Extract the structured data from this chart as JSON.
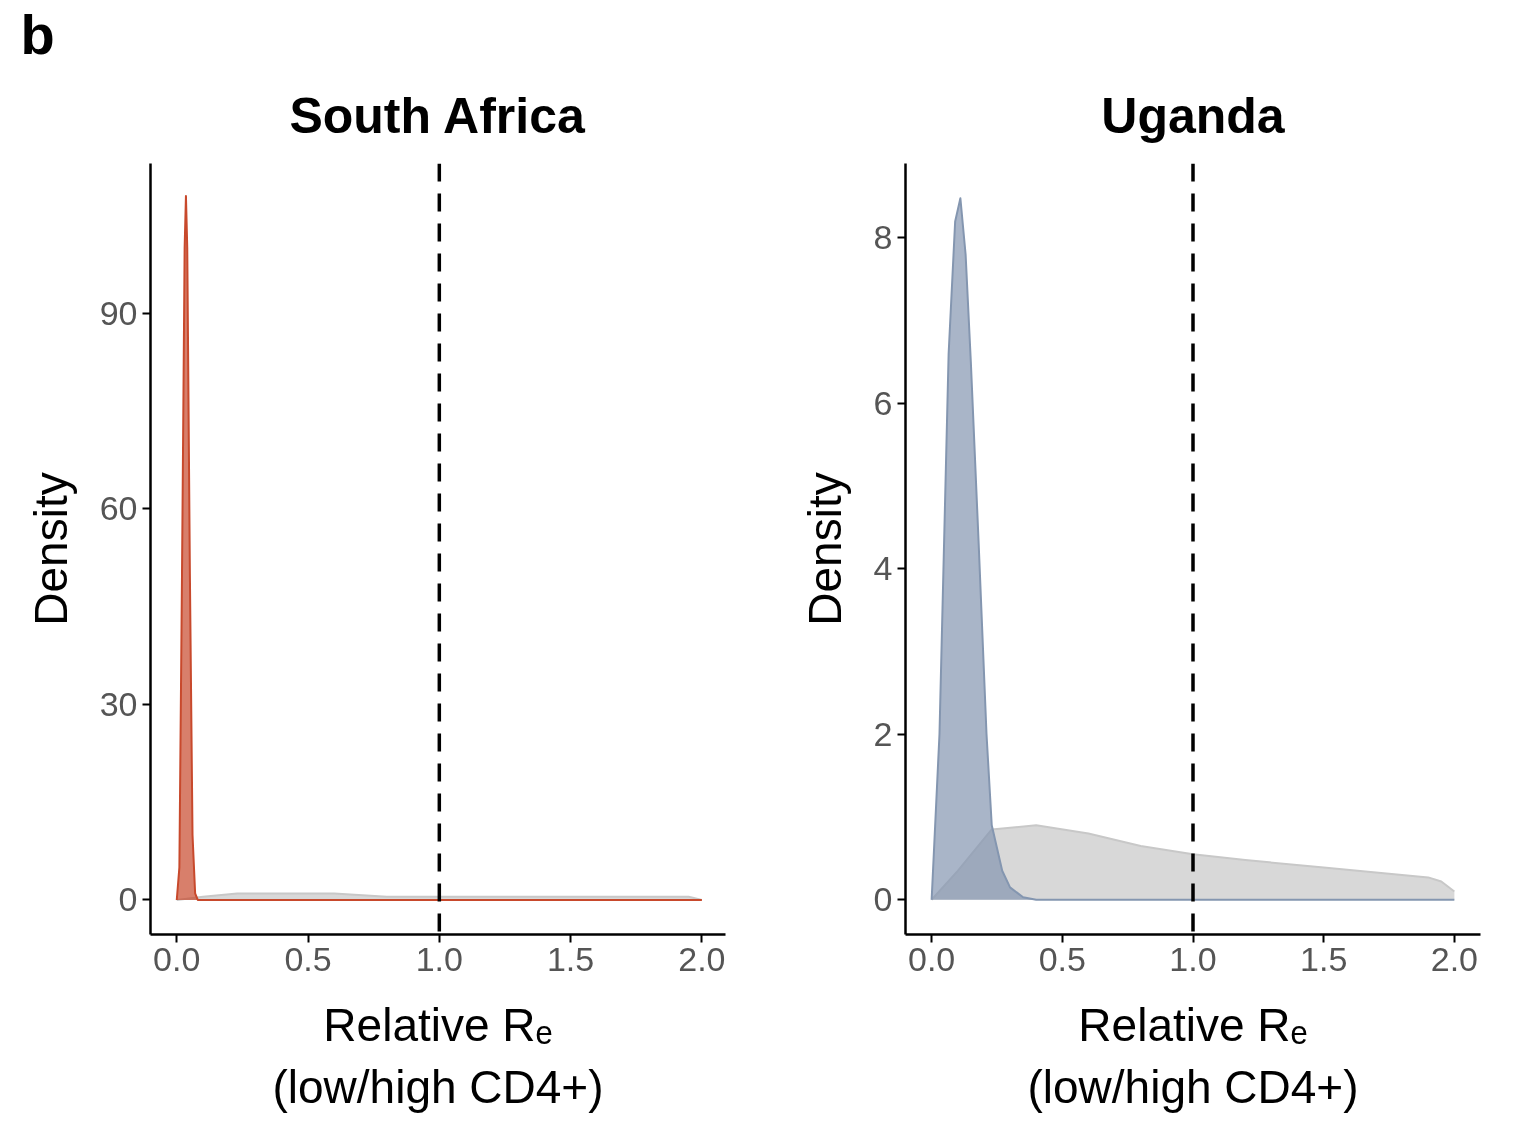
{
  "chart_data": [
    {
      "type": "area",
      "title": "South Africa",
      "annotations": [
        "b"
      ],
      "xlabel": "Relative Rₑ\n(low/high CD4+)",
      "ylabel": "Density",
      "xlim": [
        -0.1,
        2.09
      ],
      "ylim": [
        -5.3,
        113
      ],
      "xticks": [
        {
          "value": 0,
          "label": "0.0"
        },
        {
          "value": 0.5,
          "label": "0.5"
        },
        {
          "value": 1,
          "label": "1.0"
        },
        {
          "value": 1.5,
          "label": "1.5"
        },
        {
          "value": 2,
          "label": "2.0"
        }
      ],
      "yticks": [
        0,
        30,
        60,
        90
      ],
      "grid": false,
      "ref_lines": [
        {
          "axis": "x",
          "value": 1,
          "color": "#000000",
          "line_style": "dashed"
        }
      ],
      "series": [
        {
          "color": "#c8c8c8",
          "x": [
            0,
            0.1,
            0.23,
            0.4,
            0.6,
            0.8,
            1.0,
            1.2,
            1.5,
            1.8,
            1.9,
            1.95,
            2.0
          ],
          "values": [
            0,
            0.5,
            1,
            1,
            1,
            0.5,
            0.5,
            0.5,
            0.5,
            0.5,
            0.5,
            0.5,
            0
          ]
        },
        {
          "color": "#c8492c",
          "x": [
            0,
            0.01,
            0.02,
            0.03,
            0.035,
            0.04,
            0.05,
            0.06,
            0.07,
            0.08,
            2.0
          ],
          "values": [
            0,
            5,
            50,
            100,
            108,
            100,
            50,
            10,
            1,
            0,
            0
          ]
        }
      ]
    },
    {
      "type": "area",
      "title": "Uganda",
      "xlabel": "Relative Rₑ\n(low/high CD4+)",
      "ylabel": "Density",
      "xlim": [
        -0.1,
        2.1
      ],
      "ylim": [
        -0.42,
        8.9
      ],
      "xticks": [
        {
          "value": 0,
          "label": "0.0"
        },
        {
          "value": 0.5,
          "label": "0.5"
        },
        {
          "value": 1,
          "label": "1.0"
        },
        {
          "value": 1.5,
          "label": "1.5"
        },
        {
          "value": 2,
          "label": "2.0"
        }
      ],
      "yticks": [
        0,
        2,
        4,
        6,
        8
      ],
      "grid": false,
      "ref_lines": [
        {
          "axis": "x",
          "value": 1,
          "color": "#000000",
          "line_style": "dashed"
        }
      ],
      "series": [
        {
          "color": "#c8c8c8",
          "x": [
            0,
            0.1,
            0.23,
            0.4,
            0.6,
            0.8,
            1.0,
            1.2,
            1.5,
            1.8,
            1.9,
            1.95,
            2.0
          ],
          "values": [
            0,
            0.35,
            0.85,
            0.9,
            0.8,
            0.65,
            0.55,
            0.48,
            0.39,
            0.3,
            0.27,
            0.22,
            0.1
          ]
        },
        {
          "color": "#8496b0",
          "x": [
            0,
            0.03,
            0.065,
            0.09,
            0.11,
            0.13,
            0.15,
            0.18,
            0.21,
            0.23,
            0.27,
            0.3,
            0.35,
            0.4,
            2.0
          ],
          "values": [
            0,
            2.0,
            6.6,
            8.2,
            8.48,
            7.8,
            6.5,
            4.3,
            2.0,
            0.9,
            0.35,
            0.15,
            0.03,
            0,
            0
          ]
        }
      ]
    }
  ]
}
